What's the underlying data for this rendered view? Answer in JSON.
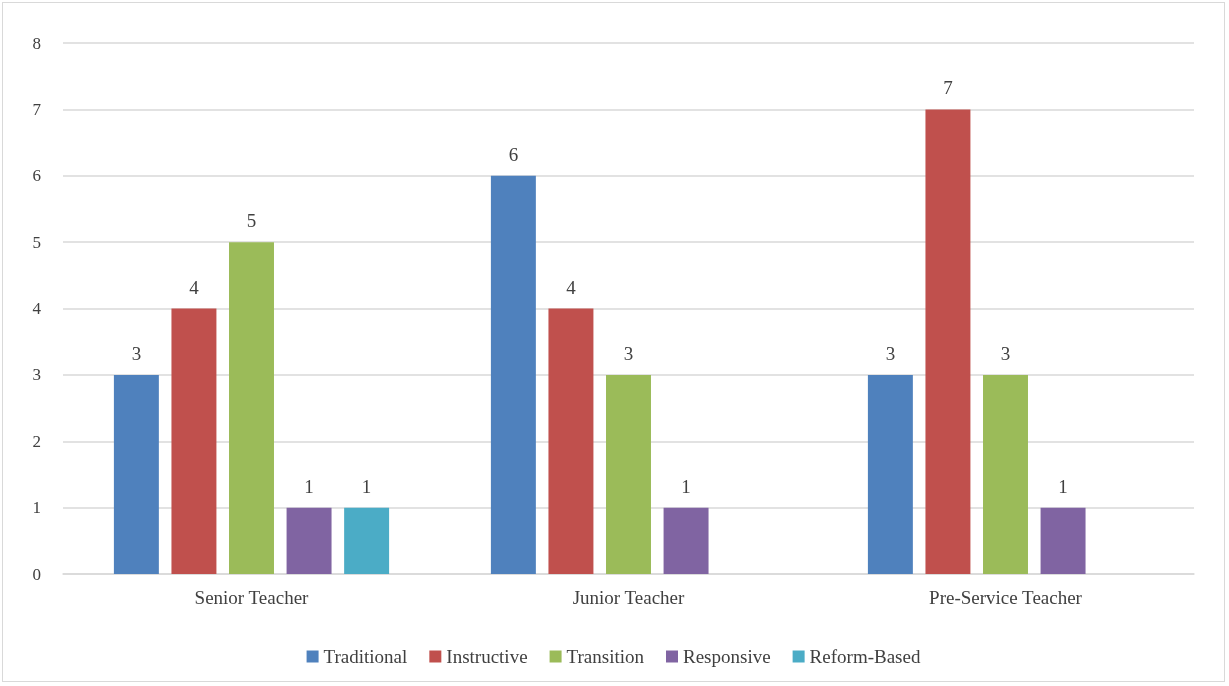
{
  "chart_data": {
    "type": "bar",
    "categories": [
      "Senior Teacher",
      "Junior Teacher",
      "Pre-Service Teacher"
    ],
    "series": [
      {
        "name": "Traditional",
        "color": "#4f81bd",
        "values": [
          3,
          6,
          3
        ]
      },
      {
        "name": "Instructive",
        "color": "#c0504d",
        "values": [
          4,
          4,
          7
        ]
      },
      {
        "name": "Transition",
        "color": "#9bbb59",
        "values": [
          5,
          3,
          3
        ]
      },
      {
        "name": "Responsive",
        "color": "#8064a2",
        "values": [
          1,
          1,
          1
        ]
      },
      {
        "name": "Reform-Based",
        "color": "#4bacc6",
        "values": [
          1,
          null,
          null
        ]
      }
    ],
    "ylim": [
      0,
      8
    ],
    "yticks": [
      0,
      1,
      2,
      3,
      4,
      5,
      6,
      7,
      8
    ],
    "grid": "y",
    "legend": "bottom",
    "data_labels": true
  }
}
